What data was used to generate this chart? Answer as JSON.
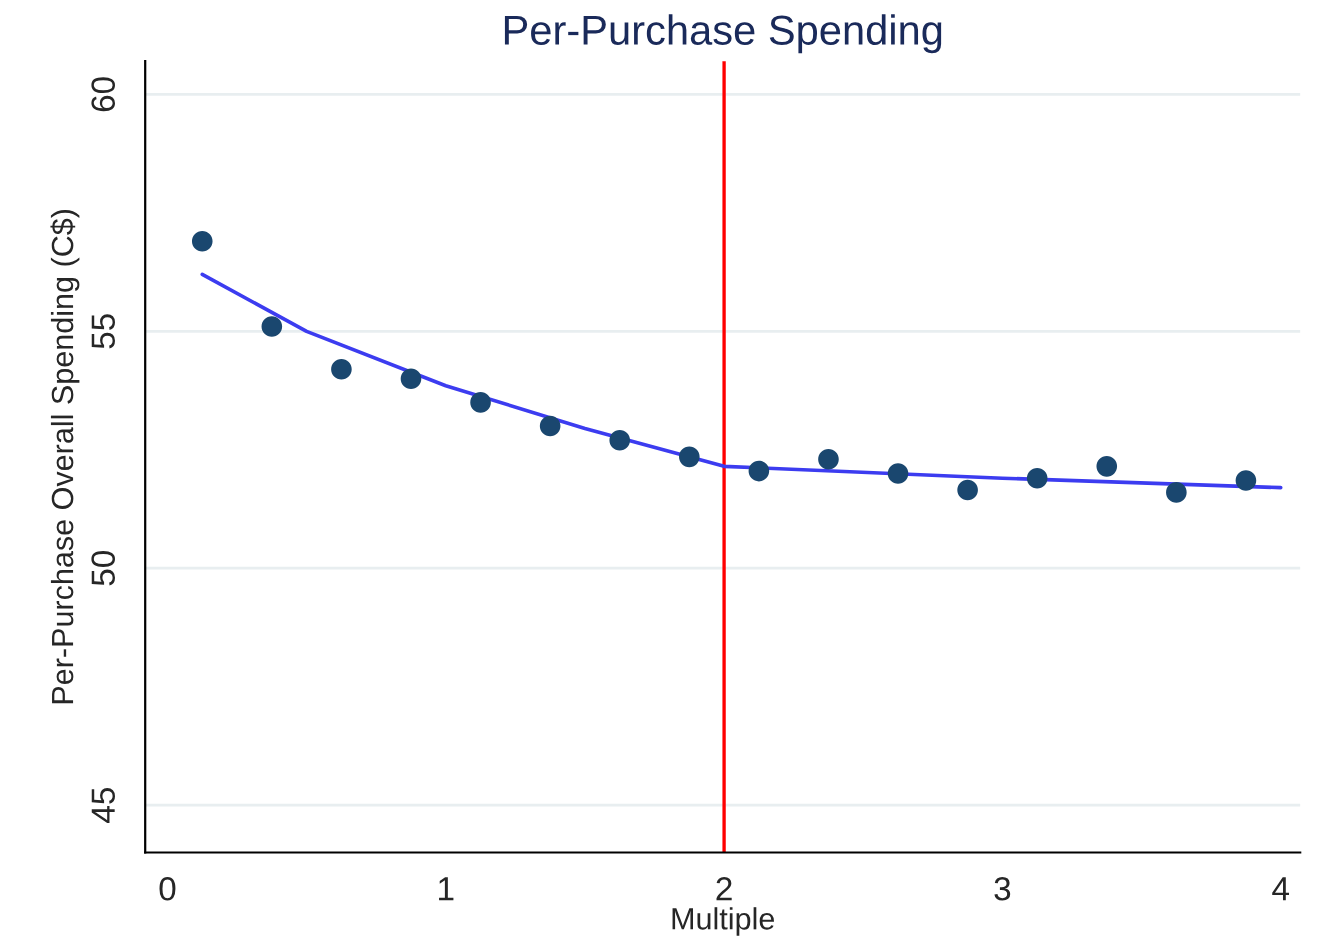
{
  "chart_data": {
    "type": "scatter",
    "title": "Per-Purchase Spending",
    "xlabel": "Multiple",
    "ylabel": "Per-Purchase Overall Spending (C$)",
    "x": [
      0.125,
      0.375,
      0.625,
      0.875,
      1.125,
      1.375,
      1.625,
      1.875,
      2.125,
      2.375,
      2.625,
      2.875,
      3.125,
      3.375,
      3.625,
      3.875
    ],
    "series": [
      {
        "type": "scatter",
        "color": "#1a476f",
        "marker": "circle",
        "values": [
          56.9,
          55.1,
          54.2,
          54.0,
          53.5,
          53.0,
          52.7,
          52.35,
          52.05,
          52.3,
          52.0,
          51.65,
          51.9,
          52.15,
          51.6,
          51.85
        ]
      },
      {
        "type": "line",
        "color": "#3c3cf0",
        "x": [
          0.125,
          0.5,
          1.0,
          1.5,
          2.0,
          3.0,
          4.0
        ],
        "values": [
          56.2,
          55.0,
          53.85,
          52.95,
          52.15,
          51.9,
          51.7
        ]
      }
    ],
    "ref_lines": [
      {
        "axis": "x",
        "value": 2,
        "color": "#ff0000"
      }
    ],
    "xlim": [
      -0.08,
      4.07
    ],
    "ylim": [
      44,
      60.7
    ],
    "xticks": [
      0,
      1,
      2,
      3,
      4
    ],
    "yticks": [
      45,
      50,
      55,
      60
    ],
    "grid": "y",
    "legend": false
  }
}
